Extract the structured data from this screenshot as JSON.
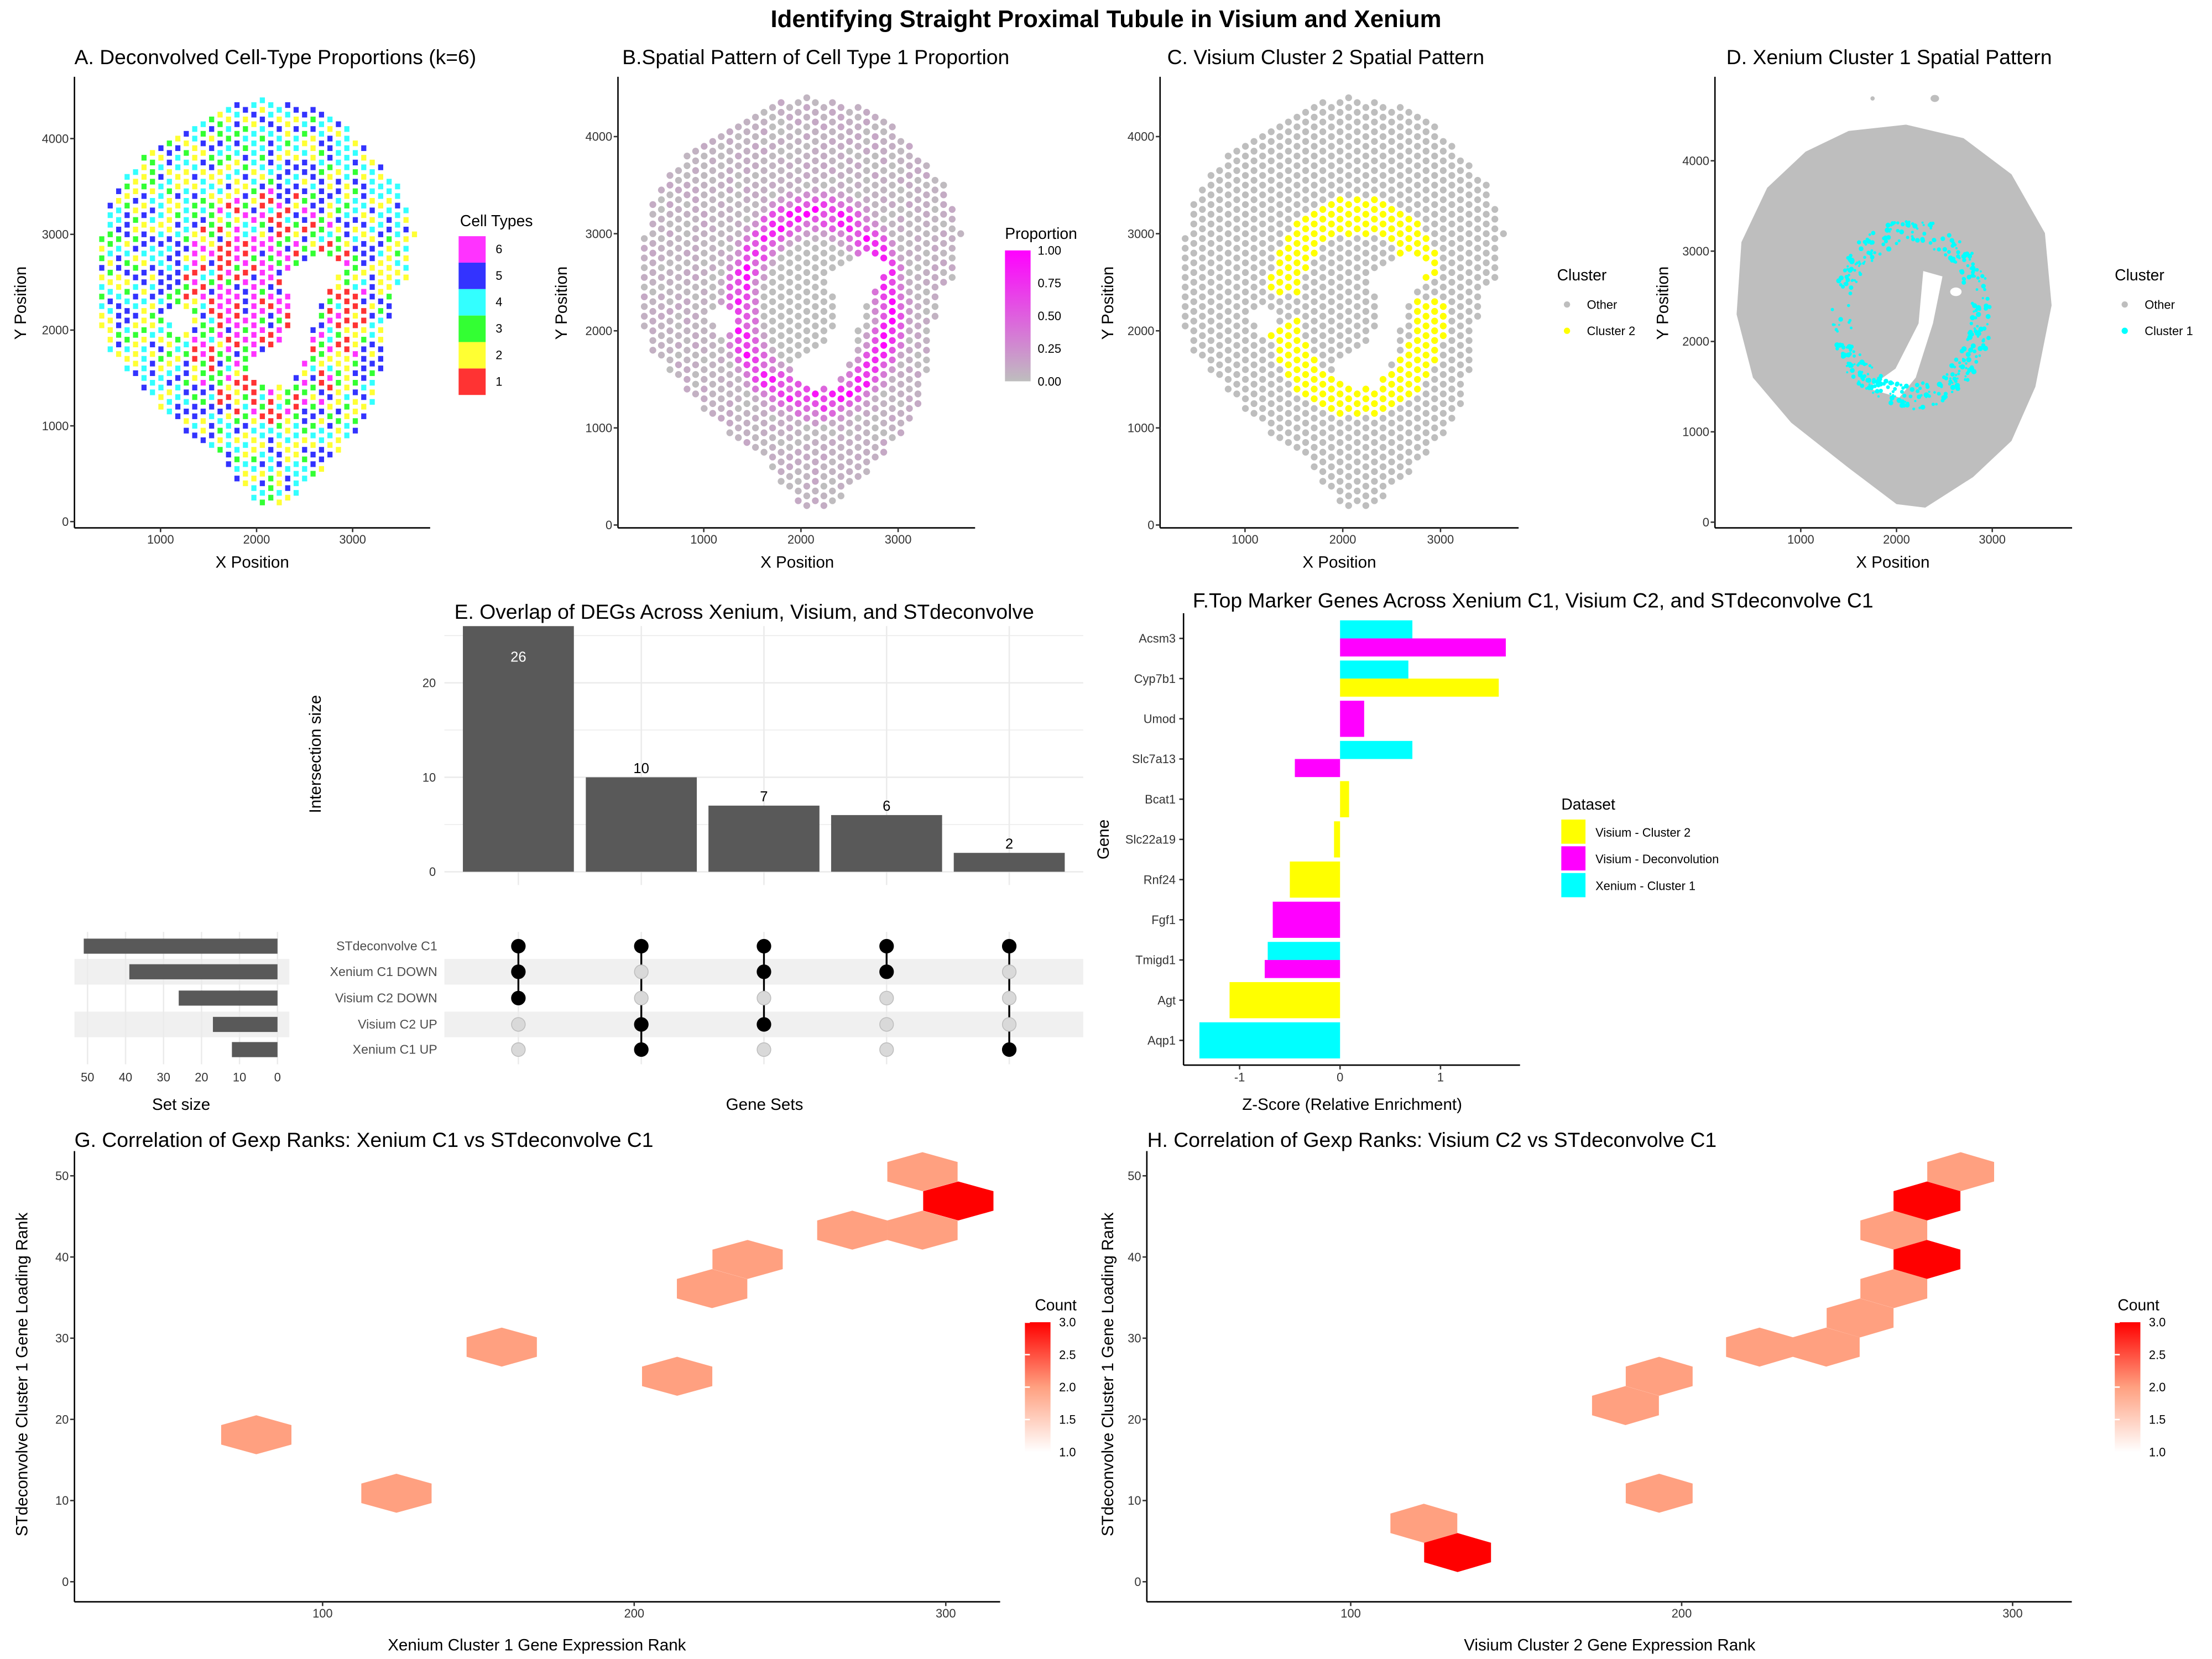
{
  "title": "Identifying Straight Proximal Tubule in Visium and Xenium",
  "chart_data": [
    {
      "type": "scatter",
      "title": "A. Deconvolved Cell-Type Proportions (k=6)",
      "xlabel": "X Position",
      "ylabel": "Y Position",
      "xticks": [
        1000,
        2000,
        3000
      ],
      "yticks": [
        0,
        1000,
        2000,
        3000,
        4000
      ],
      "legend": {
        "title": "Cell Types",
        "entries": [
          {
            "label": "6",
            "color": "#FF33FF"
          },
          {
            "label": "5",
            "color": "#3333FF"
          },
          {
            "label": "4",
            "color": "#33FFFF"
          },
          {
            "label": "3",
            "color": "#33FF33"
          },
          {
            "label": "2",
            "color": "#FFFF33"
          },
          {
            "label": "1",
            "color": "#FF3333"
          }
        ]
      }
    },
    {
      "type": "scatter",
      "title": "B.Spatial Pattern of Cell Type 1 Proportion",
      "xlabel": "X Position",
      "ylabel": "Y Position",
      "xticks": [
        1000,
        2000,
        3000
      ],
      "yticks": [
        0,
        1000,
        2000,
        3000,
        4000
      ],
      "legend": {
        "title": "Proportion",
        "low_color": "#BEBEBE",
        "high_color": "#FF00FF",
        "ticks": [
          "1.00",
          "0.75",
          "0.50",
          "0.25",
          "0.00"
        ]
      }
    },
    {
      "type": "scatter",
      "title": "C. Visium Cluster 2 Spatial Pattern",
      "xlabel": "X Position",
      "ylabel": "Y Position",
      "xticks": [
        1000,
        2000,
        3000
      ],
      "yticks": [
        0,
        1000,
        2000,
        3000,
        4000
      ],
      "legend": {
        "title": "Cluster",
        "entries": [
          {
            "label": "Other",
            "color": "#BEBEBE"
          },
          {
            "label": "Cluster 2",
            "color": "#FFFF00"
          }
        ]
      }
    },
    {
      "type": "scatter",
      "title": "D. Xenium Cluster 1 Spatial Pattern",
      "xlabel": "X Position",
      "ylabel": "Y Position",
      "xticks": [
        1000,
        2000,
        3000
      ],
      "yticks": [
        0,
        1000,
        2000,
        3000,
        4000
      ],
      "legend": {
        "title": "Cluster",
        "entries": [
          {
            "label": "Other",
            "color": "#BEBEBE"
          },
          {
            "label": "Cluster 1",
            "color": "#00FFFF"
          }
        ]
      }
    },
    {
      "type": "upset",
      "title": "E. Overlap of DEGs Across Xenium, Visium, and STdeconvolve",
      "ylabel": "Intersection size",
      "xlabel": "Gene Sets",
      "set_size_label": "Set size",
      "yticks": [
        0,
        10,
        20
      ],
      "ylim": [
        0,
        27
      ],
      "set_size_ticks": [
        50,
        40,
        30,
        20,
        10,
        0
      ],
      "sets": [
        "STdeconvolve C1",
        "Xenium C1 DOWN",
        "Visium C2 DOWN",
        "Visium C2 UP",
        "Xenium C1 UP"
      ],
      "set_sizes": [
        51,
        39,
        26,
        17,
        12
      ],
      "intersections": [
        {
          "size": 26,
          "members": [
            0,
            1,
            2
          ]
        },
        {
          "size": 10,
          "members": [
            0,
            3,
            4
          ]
        },
        {
          "size": 7,
          "members": [
            0,
            1,
            3
          ]
        },
        {
          "size": 6,
          "members": [
            0,
            1
          ]
        },
        {
          "size": 2,
          "members": [
            0,
            4
          ]
        }
      ],
      "bar_color": "#595959"
    },
    {
      "type": "bar",
      "orientation": "horizontal",
      "title": "F.Top Marker Genes Across Xenium C1, Visium C2, and STdeconvolve C1",
      "xlabel": "Z-Score (Relative Enrichment)",
      "ylabel": "Gene",
      "xticks": [
        -1,
        0,
        1
      ],
      "xlim": [
        -1.55,
        1.8
      ],
      "categories": [
        "Acsm3",
        "Cyp7b1",
        "Umod",
        "Slc7a13",
        "Bcat1",
        "Slc22a19",
        "Rnf24",
        "Fgf1",
        "Tmigd1",
        "Agt",
        "Aqp1"
      ],
      "legend": {
        "title": "Dataset"
      },
      "series": [
        {
          "name": "Visium - Cluster 2",
          "color": "#FFFF00",
          "values": [
            null,
            1.58,
            null,
            null,
            0.09,
            -0.06,
            -0.5,
            null,
            null,
            -1.1,
            null
          ]
        },
        {
          "name": "Visium - Deconvolution",
          "color": "#FF00FF",
          "values": [
            1.65,
            null,
            0.24,
            -0.45,
            null,
            null,
            null,
            -0.67,
            -0.75,
            null,
            null
          ]
        },
        {
          "name": "Xenium - Cluster 1",
          "color": "#00FFFF",
          "values": [
            0.72,
            0.68,
            null,
            0.72,
            null,
            null,
            null,
            null,
            -0.72,
            null,
            -1.4
          ]
        }
      ]
    },
    {
      "type": "heatmap",
      "subtype": "hexbin",
      "title": "G. Correlation of Gexp Ranks: Xenium C1 vs STdeconvolve C1",
      "xlabel": "Xenium Cluster 1 Gene Expression Rank",
      "ylabel": "STdeconvolve Cluster 1 Gene Loading Rank",
      "xticks": [
        100,
        200,
        300
      ],
      "yticks": [
        0,
        10,
        20,
        30,
        40,
        50
      ],
      "xlim": [
        20,
        317
      ],
      "ylim": [
        -2.5,
        53
      ],
      "legend": {
        "title": "Count",
        "low_color": "#FFFFFF",
        "high_color": "#FF0000",
        "ticks": [
          "3.0",
          "2.5",
          "2.0",
          "1.5",
          "1.0"
        ]
      },
      "bins": [
        {
          "x": 292.5,
          "y": 50.5,
          "count": 2
        },
        {
          "x": 304,
          "y": 46.9,
          "count": 3
        },
        {
          "x": 270,
          "y": 43.3,
          "count": 2
        },
        {
          "x": 292.5,
          "y": 43.3,
          "count": 2
        },
        {
          "x": 236.4,
          "y": 39.7,
          "count": 2
        },
        {
          "x": 225,
          "y": 36.1,
          "count": 2
        },
        {
          "x": 157.5,
          "y": 28.9,
          "count": 2
        },
        {
          "x": 213.8,
          "y": 25.3,
          "count": 2
        },
        {
          "x": 78.7,
          "y": 18.1,
          "count": 2
        },
        {
          "x": 123.7,
          "y": 10.9,
          "count": 2
        }
      ]
    },
    {
      "type": "heatmap",
      "subtype": "hexbin",
      "title": "H. Correlation of Gexp Ranks: Visium C2 vs STdeconvolve C1",
      "xlabel": "Visium Cluster 2 Gene Expression Rank",
      "ylabel": "STdeconvolve Cluster 1 Gene Loading Rank",
      "xticks": [
        100,
        200,
        300
      ],
      "yticks": [
        0,
        10,
        20,
        30,
        40,
        50
      ],
      "xlim": [
        38,
        318
      ],
      "ylim": [
        -2.5,
        53
      ],
      "legend": {
        "title": "Count",
        "low_color": "#FFFFFF",
        "high_color": "#FF0000",
        "ticks": [
          "3.0",
          "2.5",
          "2.0",
          "1.5",
          "1.0"
        ]
      },
      "bins": [
        {
          "x": 284.3,
          "y": 50.5,
          "count": 2
        },
        {
          "x": 274.1,
          "y": 46.9,
          "count": 3
        },
        {
          "x": 264.1,
          "y": 43.3,
          "count": 2
        },
        {
          "x": 274.1,
          "y": 39.7,
          "count": 3
        },
        {
          "x": 264.1,
          "y": 36.1,
          "count": 2
        },
        {
          "x": 253.9,
          "y": 32.5,
          "count": 2
        },
        {
          "x": 223.5,
          "y": 28.9,
          "count": 2
        },
        {
          "x": 243.7,
          "y": 28.9,
          "count": 2
        },
        {
          "x": 193.2,
          "y": 25.3,
          "count": 2
        },
        {
          "x": 183,
          "y": 21.7,
          "count": 2
        },
        {
          "x": 193.2,
          "y": 10.9,
          "count": 2
        },
        {
          "x": 122.1,
          "y": 7.2,
          "count": 2
        },
        {
          "x": 132.3,
          "y": 3.6,
          "count": 3
        }
      ]
    }
  ]
}
